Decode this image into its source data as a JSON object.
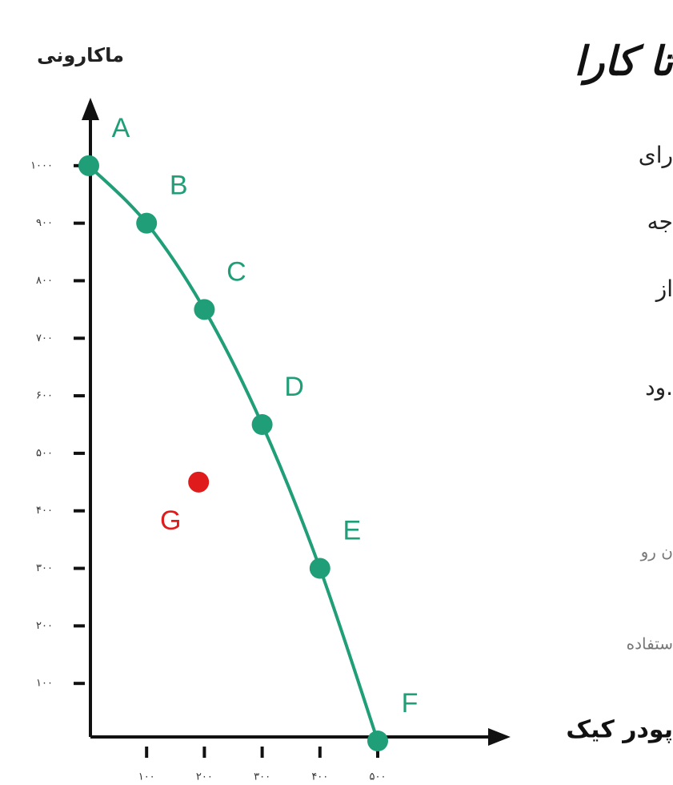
{
  "chart_data": {
    "type": "line",
    "y_label": "ماکارونی",
    "x_label": "پودر کیک",
    "x": [
      0,
      100,
      200,
      300,
      400,
      500
    ],
    "values": [
      1000,
      900,
      750,
      550,
      300,
      0
    ],
    "labels": [
      "A",
      "B",
      "C",
      "D",
      "E",
      "F"
    ],
    "color": "#1f9e78",
    "extra_point": {
      "label": "G",
      "x": 190,
      "value": 450,
      "color": "#e01b1b"
    },
    "xlim": [
      0,
      700
    ],
    "ylim": [
      0,
      1100
    ],
    "xticks": [
      {
        "value": 100,
        "label": "۱۰۰"
      },
      {
        "value": 200,
        "label": "۲۰۰"
      },
      {
        "value": 300,
        "label": "۳۰۰"
      },
      {
        "value": 400,
        "label": "۴۰۰"
      },
      {
        "value": 500,
        "label": "۵۰۰"
      }
    ],
    "yticks": [
      {
        "value": 100,
        "label": "۱۰۰"
      },
      {
        "value": 200,
        "label": "۲۰۰"
      },
      {
        "value": 300,
        "label": "۳۰۰"
      },
      {
        "value": 400,
        "label": "۴۰۰"
      },
      {
        "value": 500,
        "label": "۵۰۰"
      },
      {
        "value": 600,
        "label": "۶۰۰"
      },
      {
        "value": 700,
        "label": "۷۰۰"
      },
      {
        "value": 800,
        "label": "۸۰۰"
      },
      {
        "value": 900,
        "label": "۹۰۰"
      },
      {
        "value": 1000,
        "label": "۱۰۰۰"
      }
    ]
  },
  "side_text": {
    "title": "تا کارا",
    "lines": [
      "رای",
      "جه",
      "از",
      "ود."
    ],
    "faint": [
      "ن رو",
      "ستفاده"
    ]
  }
}
